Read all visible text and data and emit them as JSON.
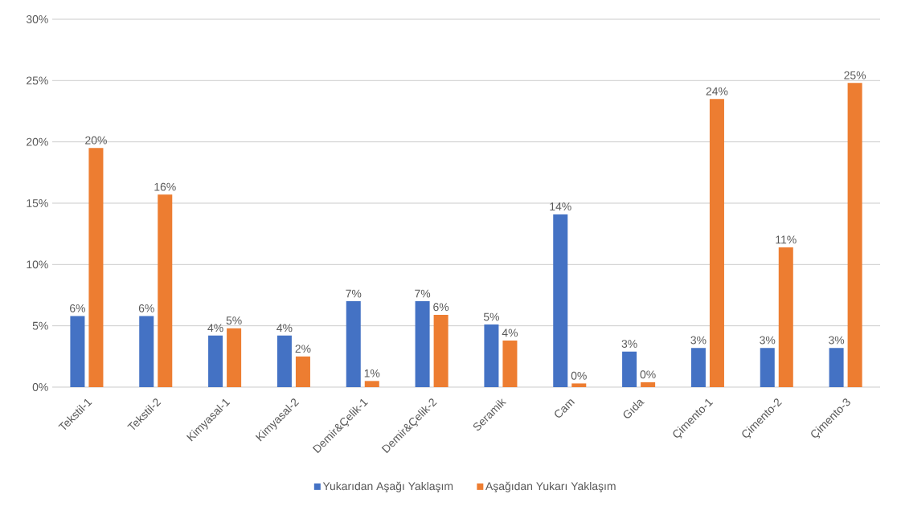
{
  "chart_data": {
    "type": "bar",
    "categories": [
      "Tekstil-1",
      "Tekstil-2",
      "Kimyasal-1",
      "Kimyasal-2",
      "Demir&Çelik-1",
      "Demir&Çelik-2",
      "Seramik",
      "Cam",
      "Gıda",
      "Çimento-1",
      "Çimento-2",
      "Çimento-3"
    ],
    "series": [
      {
        "name": "Yukarıdan Aşağı Yaklaşım",
        "color": "#4472c4",
        "values": [
          5.8,
          5.8,
          4.2,
          4.2,
          7.0,
          7.0,
          5.1,
          14.1,
          2.9,
          3.2,
          3.2,
          3.2
        ],
        "value_labels": [
          "6%",
          "6%",
          "4%",
          "4%",
          "7%",
          "7%",
          "5%",
          "14%",
          "3%",
          "3%",
          "3%",
          "3%"
        ]
      },
      {
        "name": "Aşağıdan Yukarı Yaklaşım",
        "color": "#ed7d31",
        "values": [
          19.5,
          15.7,
          4.8,
          2.5,
          0.5,
          5.9,
          3.8,
          0.3,
          0.4,
          23.5,
          11.4,
          24.8
        ],
        "value_labels": [
          "20%",
          "16%",
          "5%",
          "2%",
          "1%",
          "6%",
          "4%",
          "0%",
          "0%",
          "24%",
          "11%",
          "25%"
        ]
      }
    ],
    "ylim": [
      0,
      30
    ],
    "yticks": [
      {
        "value": 0,
        "label": "0%"
      },
      {
        "value": 5,
        "label": "5%"
      },
      {
        "value": 10,
        "label": "10%"
      },
      {
        "value": 15,
        "label": "15%"
      },
      {
        "value": 20,
        "label": "20%"
      },
      {
        "value": 25,
        "label": "25%"
      },
      {
        "value": 30,
        "label": "30%"
      }
    ],
    "grid": "y",
    "legend": "bottom"
  }
}
